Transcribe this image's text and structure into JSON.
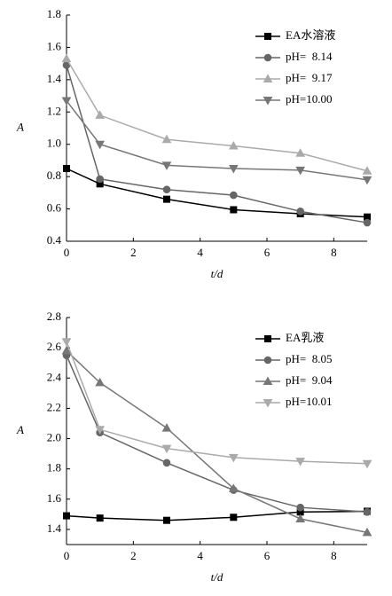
{
  "chart_data": [
    {
      "type": "line",
      "y_label": "A",
      "x_label": "t/d",
      "x": [
        0,
        1,
        3,
        5,
        7,
        9
      ],
      "xlim": [
        0,
        9
      ],
      "xticks": [
        0,
        2,
        4,
        6,
        8
      ],
      "ylim": [
        0.4,
        1.8
      ],
      "yticks": [
        0.4,
        0.6,
        0.8,
        1.0,
        1.2,
        1.4,
        1.6,
        1.8
      ],
      "series": [
        {
          "name": "EA水溶液",
          "color": "#000000",
          "marker": "square",
          "values": [
            0.85,
            0.755,
            0.66,
            0.595,
            0.57,
            0.55
          ]
        },
        {
          "name": "pH=  8.14",
          "color": "#666666",
          "marker": "circle",
          "values": [
            1.49,
            0.785,
            0.72,
            0.685,
            0.585,
            0.515
          ]
        },
        {
          "name": "pH=  9.17",
          "color": "#aaaaaa",
          "marker": "triangle-up",
          "values": [
            1.53,
            1.18,
            1.03,
            0.99,
            0.945,
            0.835
          ]
        },
        {
          "name": "pH=10.00",
          "color": "#777777",
          "marker": "triangle-down",
          "values": [
            1.27,
            1.0,
            0.87,
            0.85,
            0.84,
            0.78
          ]
        }
      ]
    },
    {
      "type": "line",
      "y_label": "A",
      "x_label": "t/d",
      "x": [
        0,
        1,
        3,
        5,
        7,
        9
      ],
      "xlim": [
        0,
        9
      ],
      "xticks": [
        0,
        2,
        4,
        6,
        8
      ],
      "ylim": [
        1.3,
        2.8
      ],
      "yticks": [
        1.4,
        1.6,
        1.8,
        2.0,
        2.2,
        2.4,
        2.6,
        2.8
      ],
      "series": [
        {
          "name": "EA乳液",
          "color": "#000000",
          "marker": "square",
          "values": [
            1.49,
            1.475,
            1.46,
            1.48,
            1.515,
            1.52
          ]
        },
        {
          "name": "pH=  8.05",
          "color": "#666666",
          "marker": "circle",
          "values": [
            2.55,
            2.04,
            1.84,
            1.66,
            1.545,
            1.515
          ]
        },
        {
          "name": "pH=  9.04",
          "color": "#777777",
          "marker": "triangle-up",
          "values": [
            2.58,
            2.37,
            2.07,
            1.67,
            1.47,
            1.38
          ]
        },
        {
          "name": "pH=10.01",
          "color": "#aaaaaa",
          "marker": "triangle-down",
          "values": [
            2.64,
            2.06,
            1.935,
            1.875,
            1.85,
            1.835
          ]
        }
      ]
    }
  ]
}
